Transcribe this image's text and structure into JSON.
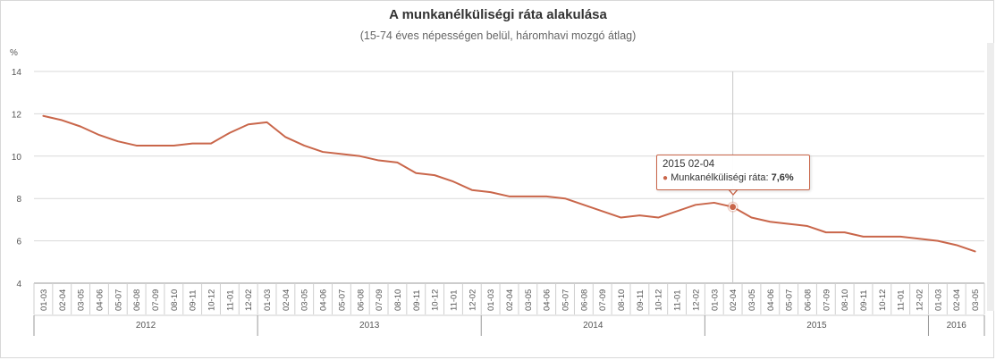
{
  "chart_data": {
    "type": "line",
    "title": "A munkanélküliségi ráta alakulása",
    "subtitle": "(15-74 éves népességen belül, háromhavi mozgó átlag)",
    "ylabel": "%",
    "ylim": [
      4,
      14
    ],
    "yticks": [
      4,
      6,
      8,
      10,
      12,
      14
    ],
    "grid": true,
    "categories": [
      "01-03",
      "02-04",
      "03-05",
      "04-06",
      "05-07",
      "06-08",
      "07-09",
      "08-10",
      "09-11",
      "10-12",
      "11-01",
      "12-02",
      "01-03",
      "02-04",
      "03-05",
      "04-06",
      "05-07",
      "06-08",
      "07-09",
      "08-10",
      "09-11",
      "10-12",
      "11-01",
      "12-02",
      "01-03",
      "02-04",
      "03-05",
      "04-06",
      "05-07",
      "06-08",
      "07-09",
      "08-10",
      "09-11",
      "10-12",
      "11-01",
      "12-02",
      "01-03",
      "02-04",
      "03-05",
      "04-06",
      "05-07",
      "06-08",
      "07-09",
      "08-10",
      "09-11",
      "10-12",
      "11-01",
      "12-02",
      "01-03",
      "02-04",
      "03-05"
    ],
    "years": [
      {
        "label": "2012",
        "start": 0,
        "count": 12
      },
      {
        "label": "2013",
        "start": 12,
        "count": 12
      },
      {
        "label": "2014",
        "start": 24,
        "count": 12
      },
      {
        "label": "2015",
        "start": 36,
        "count": 12
      },
      {
        "label": "2016",
        "start": 48,
        "count": 3
      }
    ],
    "series": [
      {
        "name": "Munkanélküliségi ráta",
        "color": "#c9664a",
        "values": [
          11.9,
          11.7,
          11.4,
          11.0,
          10.7,
          10.5,
          10.5,
          10.5,
          10.6,
          10.6,
          11.1,
          11.5,
          11.6,
          10.9,
          10.5,
          10.2,
          10.1,
          10.0,
          9.8,
          9.7,
          9.2,
          9.1,
          8.8,
          8.4,
          8.3,
          8.1,
          8.1,
          8.1,
          8.0,
          7.7,
          7.4,
          7.1,
          7.2,
          7.1,
          7.4,
          7.7,
          7.8,
          7.6,
          7.1,
          6.9,
          6.8,
          6.7,
          6.4,
          6.4,
          6.2,
          6.2,
          6.2,
          6.1,
          6.0,
          5.8,
          5.5
        ]
      }
    ],
    "highlight_index": 37
  },
  "tooltip": {
    "date": "2015 02-04",
    "series_label": "Munkanélküliségi ráta:",
    "value": "7,6%"
  }
}
